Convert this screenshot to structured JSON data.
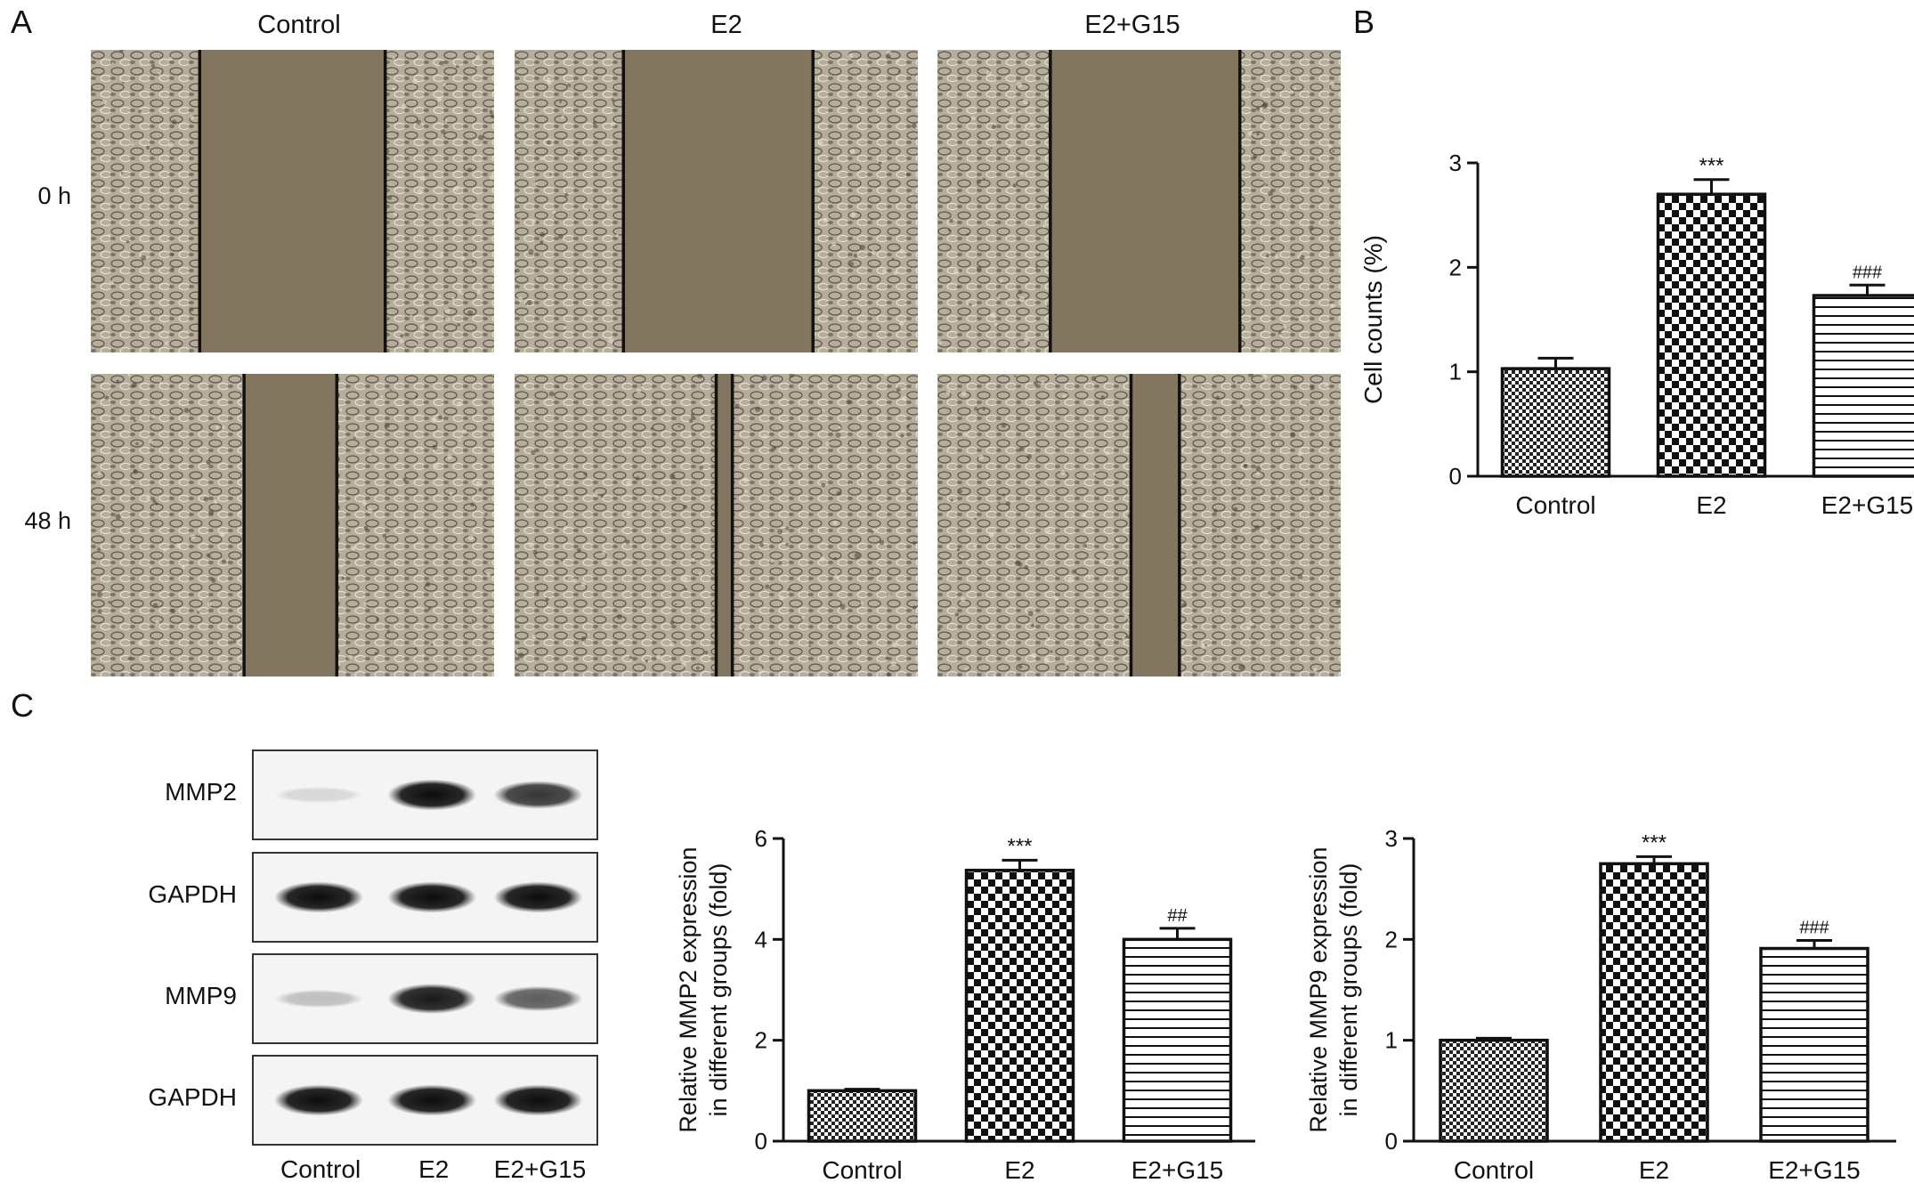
{
  "panels": {
    "a_letter": "A",
    "b_letter": "B",
    "c_letter": "C"
  },
  "wound_healing": {
    "columns": [
      "Control",
      "E2",
      "E2+G15"
    ],
    "rows": [
      "0 h",
      "48 h"
    ]
  },
  "western_blot": {
    "rows": [
      {
        "label": "MMP2",
        "intensity": [
          0.12,
          0.95,
          0.78
        ]
      },
      {
        "label": "GAPDH",
        "intensity": [
          0.95,
          0.95,
          0.95
        ]
      },
      {
        "label": "MMP9",
        "intensity": [
          0.22,
          0.9,
          0.62
        ]
      },
      {
        "label": "GAPDH",
        "intensity": [
          0.95,
          0.95,
          0.95
        ]
      }
    ],
    "lanes": [
      "Control",
      "E2",
      "E2+G15"
    ]
  },
  "colors": {
    "bar_stroke": "#111111",
    "bar_fill_light": "#ffffff",
    "micro_gap": "#8a7a66"
  },
  "chart_data": [
    {
      "id": "B",
      "type": "bar",
      "categories": [
        "Control",
        "E2",
        "E2+G15"
      ],
      "values": [
        1.03,
        2.7,
        1.73
      ],
      "errors": [
        0.1,
        0.14,
        0.1
      ],
      "annotations": [
        "",
        "***",
        "###"
      ],
      "ylabel": "Cell counts (%)",
      "ylim": [
        0,
        3
      ],
      "yticks": [
        0,
        1,
        2,
        3
      ],
      "patterns": [
        "fine-check",
        "check",
        "hlines"
      ]
    },
    {
      "id": "C-MMP2",
      "type": "bar",
      "categories": [
        "Control",
        "E2",
        "E2+G15"
      ],
      "values": [
        1.0,
        5.37,
        4.0
      ],
      "errors": [
        0.03,
        0.2,
        0.22
      ],
      "annotations": [
        "",
        "***",
        "##"
      ],
      "ylabel": "Relative MMP2 expression",
      "ylabel2": "in different groups (fold)",
      "ylim": [
        0,
        6
      ],
      "yticks": [
        0,
        2,
        4,
        6
      ],
      "patterns": [
        "fine-check",
        "check",
        "hlines"
      ]
    },
    {
      "id": "C-MMP9",
      "type": "bar",
      "categories": [
        "Control",
        "E2",
        "E2+G15"
      ],
      "values": [
        1.0,
        2.75,
        1.91
      ],
      "errors": [
        0.02,
        0.07,
        0.08
      ],
      "annotations": [
        "",
        "***",
        "###"
      ],
      "ylabel": "Relative MMP9 expression",
      "ylabel2": "in different groups (fold)",
      "ylim": [
        0,
        3
      ],
      "yticks": [
        0,
        1,
        2,
        3
      ],
      "patterns": [
        "fine-check",
        "check",
        "hlines"
      ]
    }
  ]
}
